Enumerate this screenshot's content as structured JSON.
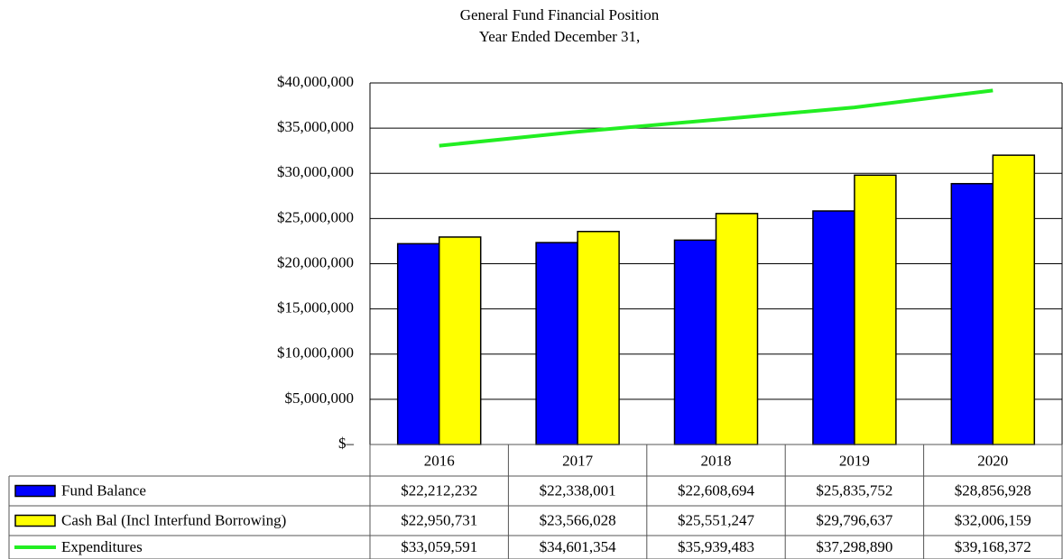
{
  "chart_data": {
    "type": "bar",
    "title": "General Fund Financial Position",
    "subtitle": "Year Ended December 31,",
    "categories": [
      "2016",
      "2017",
      "2018",
      "2019",
      "2020"
    ],
    "series": [
      {
        "name": "Fund Balance",
        "color": "#0000ff",
        "type": "bar",
        "values": [
          22212232,
          22338001,
          22608694,
          25835752,
          28856928
        ],
        "value_labels": [
          "$22,212,232",
          "$22,338,001",
          "$22,608,694",
          "$25,835,752",
          "$28,856,928"
        ]
      },
      {
        "name": "Cash Bal (Incl Interfund Borrowing)",
        "color": "#ffff00",
        "type": "bar",
        "values": [
          22950731,
          23566028,
          25551247,
          29796637,
          32006159
        ],
        "value_labels": [
          "$22,950,731",
          "$23,566,028",
          "$25,551,247",
          "$29,796,637",
          "$32,006,159"
        ]
      },
      {
        "name": "Expenditures",
        "color": "#22ee22",
        "type": "line",
        "values": [
          33059591,
          34601354,
          35939483,
          37298890,
          39168372
        ],
        "value_labels": [
          "$33,059,591",
          "$34,601,354",
          "$35,939,483",
          "$37,298,890",
          "$39,168,372"
        ]
      }
    ],
    "ylim": [
      0,
      40000000
    ],
    "yticks": [
      {
        "value": 0,
        "label": "$–"
      },
      {
        "value": 5000000,
        "label": "$5,000,000"
      },
      {
        "value": 10000000,
        "label": "$10,000,000"
      },
      {
        "value": 15000000,
        "label": "$15,000,000"
      },
      {
        "value": 20000000,
        "label": "$20,000,000"
      },
      {
        "value": 25000000,
        "label": "$25,000,000"
      },
      {
        "value": 30000000,
        "label": "$30,000,000"
      },
      {
        "value": 35000000,
        "label": "$35,000,000"
      },
      {
        "value": 40000000,
        "label": "$40,000,000"
      }
    ],
    "grid": true
  }
}
